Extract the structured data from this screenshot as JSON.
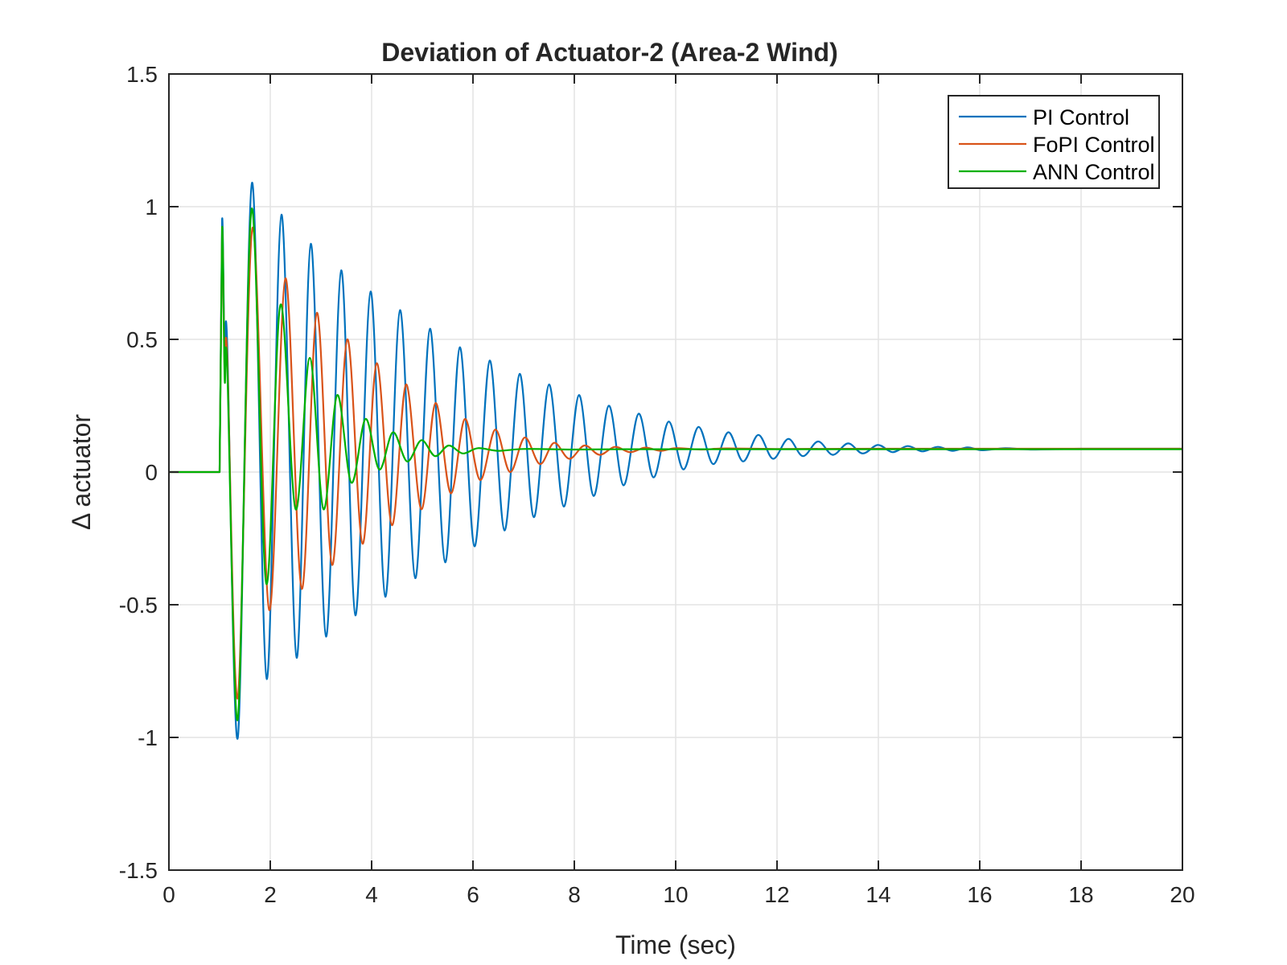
{
  "chart_data": {
    "type": "line",
    "title": "Deviation of Actuator-2 (Area-2 Wind)",
    "xlabel": "Time (sec)",
    "ylabel": "Δ actuator",
    "xlim": [
      0,
      20
    ],
    "ylim": [
      -1.5,
      1.5
    ],
    "xticks": [
      0,
      2,
      4,
      6,
      8,
      10,
      12,
      14,
      16,
      18,
      20
    ],
    "xtick_labels": [
      "0",
      "2",
      "4",
      "6",
      "8",
      "10",
      "12",
      "14",
      "16",
      "18",
      "20"
    ],
    "yticks": [
      -1.5,
      -1,
      -0.5,
      0,
      0.5,
      1,
      1.5
    ],
    "ytick_labels": [
      "-1.5",
      "-1",
      "-0.5",
      "0",
      "0.5",
      "1",
      "1.5"
    ],
    "grid": true,
    "legend_position": "top-right",
    "series": [
      {
        "name": "PI Control",
        "color": "#0072BD",
        "points": [
          [
            0,
            0
          ],
          [
            1.0,
            0
          ],
          [
            1.05,
            0.95
          ],
          [
            1.1,
            0.42
          ],
          [
            1.15,
            0.49
          ],
          [
            1.36,
            -1.0
          ],
          [
            1.64,
            1.09
          ],
          [
            1.93,
            -0.78
          ],
          [
            2.22,
            0.97
          ],
          [
            2.52,
            -0.7
          ],
          [
            2.8,
            0.86
          ],
          [
            3.1,
            -0.62
          ],
          [
            3.4,
            0.76
          ],
          [
            3.68,
            -0.54
          ],
          [
            3.98,
            0.68
          ],
          [
            4.27,
            -0.47
          ],
          [
            4.56,
            0.61
          ],
          [
            4.86,
            -0.4
          ],
          [
            5.15,
            0.54
          ],
          [
            5.45,
            -0.34
          ],
          [
            5.74,
            0.47
          ],
          [
            6.03,
            -0.28
          ],
          [
            6.33,
            0.42
          ],
          [
            6.62,
            -0.22
          ],
          [
            6.92,
            0.37
          ],
          [
            7.2,
            -0.17
          ],
          [
            7.5,
            0.33
          ],
          [
            7.79,
            -0.13
          ],
          [
            8.09,
            0.29
          ],
          [
            8.38,
            -0.09
          ],
          [
            8.68,
            0.25
          ],
          [
            8.97,
            -0.05
          ],
          [
            9.27,
            0.22
          ],
          [
            9.56,
            -0.02
          ],
          [
            9.86,
            0.19
          ],
          [
            10.15,
            0.01
          ],
          [
            10.45,
            0.17
          ],
          [
            10.74,
            0.03
          ],
          [
            11.04,
            0.15
          ],
          [
            11.33,
            0.04
          ],
          [
            11.63,
            0.14
          ],
          [
            11.92,
            0.05
          ],
          [
            12.22,
            0.125
          ],
          [
            12.51,
            0.06
          ],
          [
            12.81,
            0.115
          ],
          [
            13.1,
            0.065
          ],
          [
            13.4,
            0.108
          ],
          [
            13.69,
            0.07
          ],
          [
            13.99,
            0.102
          ],
          [
            14.28,
            0.075
          ],
          [
            14.58,
            0.098
          ],
          [
            14.87,
            0.078
          ],
          [
            15.17,
            0.095
          ],
          [
            15.46,
            0.08
          ],
          [
            15.76,
            0.093
          ],
          [
            16.05,
            0.082
          ],
          [
            16.5,
            0.09
          ],
          [
            17.0,
            0.085
          ],
          [
            18.0,
            0.088
          ],
          [
            19.0,
            0.088
          ],
          [
            20.0,
            0.088
          ]
        ]
      },
      {
        "name": "FoPI Control",
        "color": "#D95319",
        "points": [
          [
            0,
            0
          ],
          [
            1.0,
            0
          ],
          [
            1.05,
            0.9
          ],
          [
            1.1,
            0.38
          ],
          [
            1.15,
            0.44
          ],
          [
            1.36,
            -0.85
          ],
          [
            1.65,
            0.92
          ],
          [
            1.98,
            -0.52
          ],
          [
            2.3,
            0.73
          ],
          [
            2.62,
            -0.44
          ],
          [
            2.92,
            0.6
          ],
          [
            3.22,
            -0.35
          ],
          [
            3.52,
            0.5
          ],
          [
            3.82,
            -0.27
          ],
          [
            4.1,
            0.41
          ],
          [
            4.4,
            -0.2
          ],
          [
            4.68,
            0.33
          ],
          [
            4.98,
            -0.14
          ],
          [
            5.26,
            0.26
          ],
          [
            5.56,
            -0.08
          ],
          [
            5.84,
            0.2
          ],
          [
            6.14,
            -0.03
          ],
          [
            6.44,
            0.16
          ],
          [
            6.73,
            0.0
          ],
          [
            7.02,
            0.13
          ],
          [
            7.32,
            0.03
          ],
          [
            7.6,
            0.11
          ],
          [
            7.9,
            0.05
          ],
          [
            8.2,
            0.1
          ],
          [
            8.5,
            0.065
          ],
          [
            8.8,
            0.095
          ],
          [
            9.1,
            0.075
          ],
          [
            9.4,
            0.092
          ],
          [
            9.7,
            0.08
          ],
          [
            10.0,
            0.09
          ],
          [
            10.5,
            0.085
          ],
          [
            11.0,
            0.089
          ],
          [
            12.0,
            0.087
          ],
          [
            14.0,
            0.088
          ],
          [
            16.0,
            0.088
          ],
          [
            18.0,
            0.088
          ],
          [
            20.0,
            0.088
          ]
        ]
      },
      {
        "name": "ANN Control",
        "color": "#00B000",
        "points": [
          [
            0,
            0
          ],
          [
            1.0,
            0
          ],
          [
            1.05,
            0.92
          ],
          [
            1.1,
            0.35
          ],
          [
            1.15,
            0.4
          ],
          [
            1.36,
            -0.93
          ],
          [
            1.63,
            0.99
          ],
          [
            1.92,
            -0.42
          ],
          [
            2.2,
            0.63
          ],
          [
            2.5,
            -0.14
          ],
          [
            2.78,
            0.43
          ],
          [
            3.05,
            -0.14
          ],
          [
            3.32,
            0.29
          ],
          [
            3.6,
            -0.04
          ],
          [
            3.88,
            0.2
          ],
          [
            4.15,
            0.01
          ],
          [
            4.42,
            0.15
          ],
          [
            4.7,
            0.04
          ],
          [
            4.98,
            0.12
          ],
          [
            5.25,
            0.06
          ],
          [
            5.52,
            0.1
          ],
          [
            5.8,
            0.07
          ],
          [
            6.1,
            0.09
          ],
          [
            6.5,
            0.08
          ],
          [
            7.0,
            0.087
          ],
          [
            8.0,
            0.085
          ],
          [
            9.0,
            0.086
          ],
          [
            10.0,
            0.086
          ],
          [
            12.0,
            0.086
          ],
          [
            14.0,
            0.086
          ],
          [
            16.0,
            0.086
          ],
          [
            18.0,
            0.086
          ],
          [
            20.0,
            0.086
          ]
        ]
      }
    ]
  }
}
